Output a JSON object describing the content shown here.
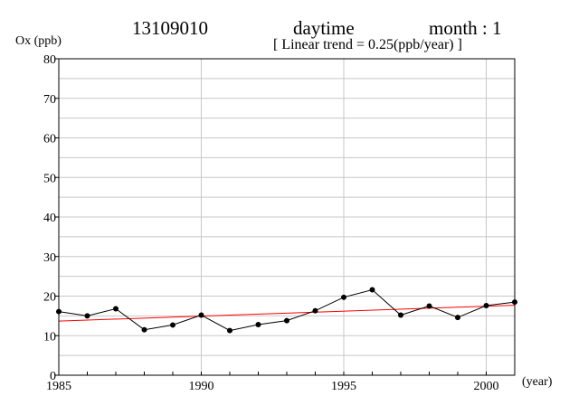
{
  "header": {
    "station": "13109010",
    "period": "daytime",
    "month": "month : 1",
    "trend": "[ Linear trend = 0.25(ppb/year) ]"
  },
  "chart_data": {
    "type": "line",
    "ylabel": "Ox (ppb)",
    "xlabel": "(year)",
    "xlim": [
      1985,
      2001
    ],
    "ylim": [
      0,
      80
    ],
    "x_ticks": [
      1985,
      1990,
      1995,
      2000
    ],
    "y_ticks": [
      0,
      10,
      20,
      30,
      40,
      50,
      60,
      70,
      80
    ],
    "grid": true,
    "series": [
      {
        "color": "#000000",
        "markers": true,
        "x": [
          1985,
          1986,
          1987,
          1988,
          1989,
          1990,
          1991,
          1992,
          1993,
          1994,
          1995,
          1996,
          1997,
          1998,
          1999,
          2000,
          2001
        ],
        "values": [
          16.1,
          15.0,
          16.8,
          11.5,
          12.7,
          15.2,
          11.3,
          12.8,
          13.8,
          16.3,
          19.7,
          21.6,
          15.2,
          17.5,
          14.6,
          17.6,
          18.5
        ]
      },
      {
        "color": "#ff0000",
        "markers": false,
        "x": [
          1985,
          2001
        ],
        "values": [
          13.7,
          17.7
        ]
      }
    ]
  }
}
